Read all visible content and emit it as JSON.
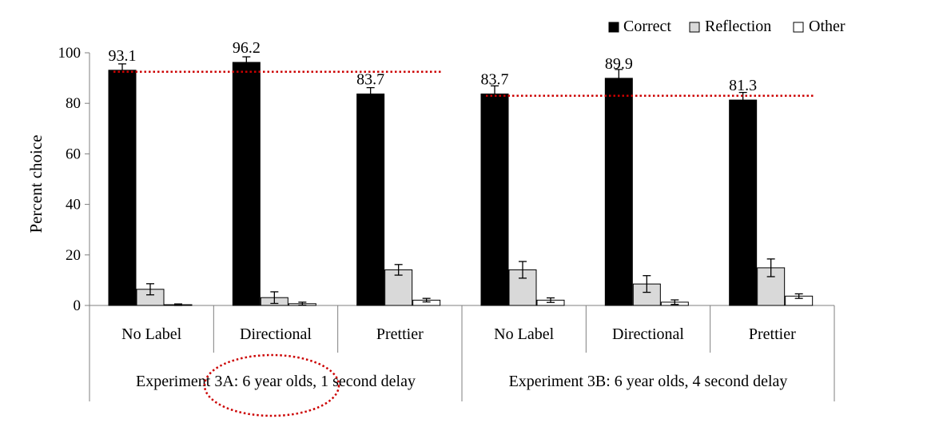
{
  "chart_data": {
    "type": "bar",
    "ylabel": "Percent choice",
    "ylim": [
      0,
      100
    ],
    "yticks": [
      0,
      20,
      40,
      60,
      80,
      100
    ],
    "legend_position": "top-right",
    "grid": false,
    "groups": [
      {
        "label": "Experiment 3A: 6 year olds, 1 second delay"
      },
      {
        "label": "Experiment 3B: 6 year olds, 4 second delay"
      }
    ],
    "categories": [
      "No Label",
      "Directional",
      "Prettier",
      "No Label",
      "Directional",
      "Prettier"
    ],
    "series": [
      {
        "name": "Correct",
        "color": "#000000",
        "values": [
          93.1,
          96.2,
          83.7,
          83.7,
          89.9,
          81.3
        ],
        "errors": [
          2.5,
          2.2,
          2.5,
          3.2,
          3.5,
          3.0
        ]
      },
      {
        "name": "Reflection",
        "color": "#d9d9d9",
        "values": [
          6.4,
          3.1,
          14.1,
          14.1,
          8.5,
          14.9
        ],
        "errors": [
          2.2,
          2.3,
          2.1,
          3.3,
          3.3,
          3.5
        ]
      },
      {
        "name": "Other",
        "color": "#ffffff",
        "values": [
          0.3,
          0.7,
          2.1,
          2.1,
          1.3,
          3.7
        ],
        "errors": [
          0.3,
          0.6,
          0.7,
          0.9,
          0.9,
          0.9
        ]
      }
    ],
    "data_labels": [
      "93.1",
      "96.2",
      "83.7",
      "83.7",
      "89.9",
      "81.3"
    ],
    "reference_lines": [
      {
        "value": 92.5,
        "from_category": 0,
        "to_category": 2
      },
      {
        "value": 83.0,
        "from_category": 3,
        "to_category": 5
      }
    ],
    "reference_line_color": "#cc0000",
    "annotation_circle_color": "#cc0000"
  }
}
